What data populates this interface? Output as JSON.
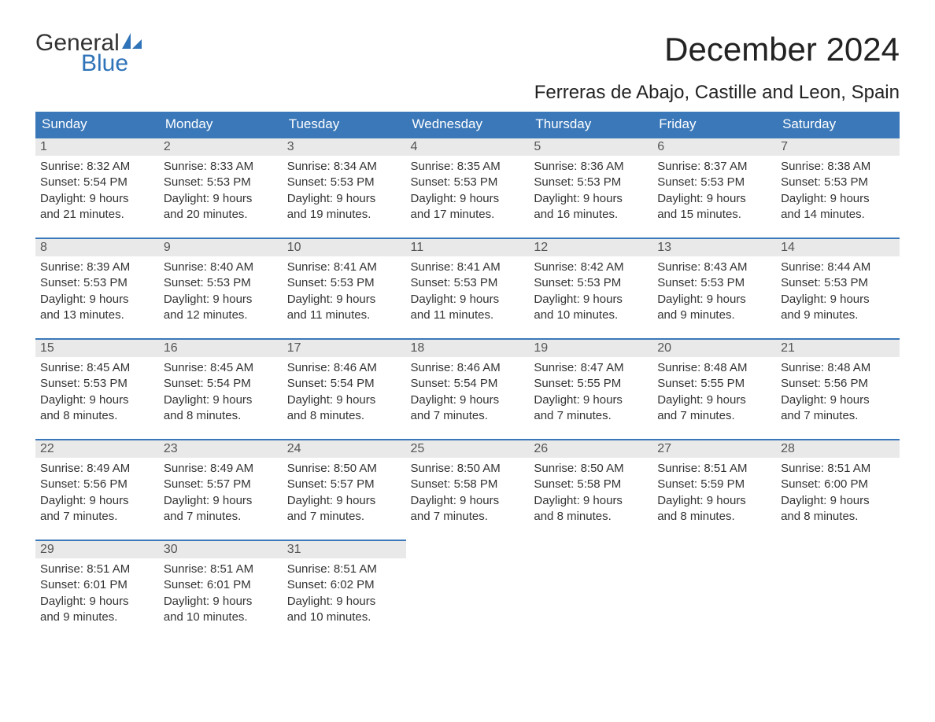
{
  "logo": {
    "word1": "General",
    "word2": "Blue",
    "accent_color": "#2f73b8"
  },
  "title": "December 2024",
  "location": "Ferreras de Abajo, Castille and Leon, Spain",
  "calendar": {
    "header_bg": "#3a78b9",
    "header_fg": "#ffffff",
    "dayhead_bg": "#e9e9e9",
    "border_color": "#3a78b9",
    "columns": [
      "Sunday",
      "Monday",
      "Tuesday",
      "Wednesday",
      "Thursday",
      "Friday",
      "Saturday"
    ],
    "weeks": [
      [
        {
          "num": "1",
          "sunrise": "Sunrise: 8:32 AM",
          "sunset": "Sunset: 5:54 PM",
          "dl1": "Daylight: 9 hours",
          "dl2": "and 21 minutes."
        },
        {
          "num": "2",
          "sunrise": "Sunrise: 8:33 AM",
          "sunset": "Sunset: 5:53 PM",
          "dl1": "Daylight: 9 hours",
          "dl2": "and 20 minutes."
        },
        {
          "num": "3",
          "sunrise": "Sunrise: 8:34 AM",
          "sunset": "Sunset: 5:53 PM",
          "dl1": "Daylight: 9 hours",
          "dl2": "and 19 minutes."
        },
        {
          "num": "4",
          "sunrise": "Sunrise: 8:35 AM",
          "sunset": "Sunset: 5:53 PM",
          "dl1": "Daylight: 9 hours",
          "dl2": "and 17 minutes."
        },
        {
          "num": "5",
          "sunrise": "Sunrise: 8:36 AM",
          "sunset": "Sunset: 5:53 PM",
          "dl1": "Daylight: 9 hours",
          "dl2": "and 16 minutes."
        },
        {
          "num": "6",
          "sunrise": "Sunrise: 8:37 AM",
          "sunset": "Sunset: 5:53 PM",
          "dl1": "Daylight: 9 hours",
          "dl2": "and 15 minutes."
        },
        {
          "num": "7",
          "sunrise": "Sunrise: 8:38 AM",
          "sunset": "Sunset: 5:53 PM",
          "dl1": "Daylight: 9 hours",
          "dl2": "and 14 minutes."
        }
      ],
      [
        {
          "num": "8",
          "sunrise": "Sunrise: 8:39 AM",
          "sunset": "Sunset: 5:53 PM",
          "dl1": "Daylight: 9 hours",
          "dl2": "and 13 minutes."
        },
        {
          "num": "9",
          "sunrise": "Sunrise: 8:40 AM",
          "sunset": "Sunset: 5:53 PM",
          "dl1": "Daylight: 9 hours",
          "dl2": "and 12 minutes."
        },
        {
          "num": "10",
          "sunrise": "Sunrise: 8:41 AM",
          "sunset": "Sunset: 5:53 PM",
          "dl1": "Daylight: 9 hours",
          "dl2": "and 11 minutes."
        },
        {
          "num": "11",
          "sunrise": "Sunrise: 8:41 AM",
          "sunset": "Sunset: 5:53 PM",
          "dl1": "Daylight: 9 hours",
          "dl2": "and 11 minutes."
        },
        {
          "num": "12",
          "sunrise": "Sunrise: 8:42 AM",
          "sunset": "Sunset: 5:53 PM",
          "dl1": "Daylight: 9 hours",
          "dl2": "and 10 minutes."
        },
        {
          "num": "13",
          "sunrise": "Sunrise: 8:43 AM",
          "sunset": "Sunset: 5:53 PM",
          "dl1": "Daylight: 9 hours",
          "dl2": "and 9 minutes."
        },
        {
          "num": "14",
          "sunrise": "Sunrise: 8:44 AM",
          "sunset": "Sunset: 5:53 PM",
          "dl1": "Daylight: 9 hours",
          "dl2": "and 9 minutes."
        }
      ],
      [
        {
          "num": "15",
          "sunrise": "Sunrise: 8:45 AM",
          "sunset": "Sunset: 5:53 PM",
          "dl1": "Daylight: 9 hours",
          "dl2": "and 8 minutes."
        },
        {
          "num": "16",
          "sunrise": "Sunrise: 8:45 AM",
          "sunset": "Sunset: 5:54 PM",
          "dl1": "Daylight: 9 hours",
          "dl2": "and 8 minutes."
        },
        {
          "num": "17",
          "sunrise": "Sunrise: 8:46 AM",
          "sunset": "Sunset: 5:54 PM",
          "dl1": "Daylight: 9 hours",
          "dl2": "and 8 minutes."
        },
        {
          "num": "18",
          "sunrise": "Sunrise: 8:46 AM",
          "sunset": "Sunset: 5:54 PM",
          "dl1": "Daylight: 9 hours",
          "dl2": "and 7 minutes."
        },
        {
          "num": "19",
          "sunrise": "Sunrise: 8:47 AM",
          "sunset": "Sunset: 5:55 PM",
          "dl1": "Daylight: 9 hours",
          "dl2": "and 7 minutes."
        },
        {
          "num": "20",
          "sunrise": "Sunrise: 8:48 AM",
          "sunset": "Sunset: 5:55 PM",
          "dl1": "Daylight: 9 hours",
          "dl2": "and 7 minutes."
        },
        {
          "num": "21",
          "sunrise": "Sunrise: 8:48 AM",
          "sunset": "Sunset: 5:56 PM",
          "dl1": "Daylight: 9 hours",
          "dl2": "and 7 minutes."
        }
      ],
      [
        {
          "num": "22",
          "sunrise": "Sunrise: 8:49 AM",
          "sunset": "Sunset: 5:56 PM",
          "dl1": "Daylight: 9 hours",
          "dl2": "and 7 minutes."
        },
        {
          "num": "23",
          "sunrise": "Sunrise: 8:49 AM",
          "sunset": "Sunset: 5:57 PM",
          "dl1": "Daylight: 9 hours",
          "dl2": "and 7 minutes."
        },
        {
          "num": "24",
          "sunrise": "Sunrise: 8:50 AM",
          "sunset": "Sunset: 5:57 PM",
          "dl1": "Daylight: 9 hours",
          "dl2": "and 7 minutes."
        },
        {
          "num": "25",
          "sunrise": "Sunrise: 8:50 AM",
          "sunset": "Sunset: 5:58 PM",
          "dl1": "Daylight: 9 hours",
          "dl2": "and 7 minutes."
        },
        {
          "num": "26",
          "sunrise": "Sunrise: 8:50 AM",
          "sunset": "Sunset: 5:58 PM",
          "dl1": "Daylight: 9 hours",
          "dl2": "and 8 minutes."
        },
        {
          "num": "27",
          "sunrise": "Sunrise: 8:51 AM",
          "sunset": "Sunset: 5:59 PM",
          "dl1": "Daylight: 9 hours",
          "dl2": "and 8 minutes."
        },
        {
          "num": "28",
          "sunrise": "Sunrise: 8:51 AM",
          "sunset": "Sunset: 6:00 PM",
          "dl1": "Daylight: 9 hours",
          "dl2": "and 8 minutes."
        }
      ],
      [
        {
          "num": "29",
          "sunrise": "Sunrise: 8:51 AM",
          "sunset": "Sunset: 6:01 PM",
          "dl1": "Daylight: 9 hours",
          "dl2": "and 9 minutes."
        },
        {
          "num": "30",
          "sunrise": "Sunrise: 8:51 AM",
          "sunset": "Sunset: 6:01 PM",
          "dl1": "Daylight: 9 hours",
          "dl2": "and 10 minutes."
        },
        {
          "num": "31",
          "sunrise": "Sunrise: 8:51 AM",
          "sunset": "Sunset: 6:02 PM",
          "dl1": "Daylight: 9 hours",
          "dl2": "and 10 minutes."
        },
        null,
        null,
        null,
        null
      ]
    ]
  }
}
